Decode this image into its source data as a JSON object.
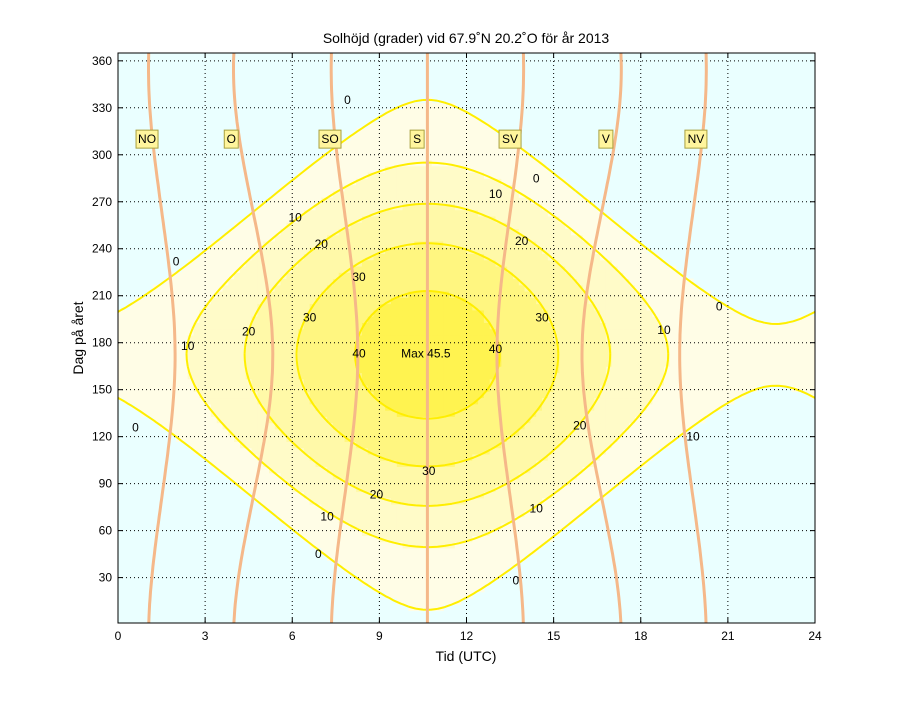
{
  "chart_data": {
    "type": "contour",
    "title": "Solhöjd (grader) vid 67.9˚N 20.2˚O för år 2013",
    "xlabel": "Tid (UTC)",
    "ylabel": "Dag på året",
    "xlim": [
      0,
      24
    ],
    "ylim": [
      1,
      365
    ],
    "x_ticks": [
      "0",
      "3",
      "6",
      "9",
      "12",
      "15",
      "18",
      "21",
      "24"
    ],
    "y_ticks": [
      "30",
      "60",
      "90",
      "120",
      "150",
      "180",
      "210",
      "240",
      "270",
      "300",
      "330",
      "360"
    ],
    "grid": true,
    "contour_levels": [
      0,
      10,
      20,
      30,
      40
    ],
    "contour_labels": [
      {
        "text": "0",
        "x": 7.9,
        "y": 335
      },
      {
        "text": "0",
        "x": 14.4,
        "y": 285
      },
      {
        "text": "0",
        "x": 2.0,
        "y": 232
      },
      {
        "text": "0",
        "x": 20.7,
        "y": 203
      },
      {
        "text": "0",
        "x": 0.6,
        "y": 126
      },
      {
        "text": "0",
        "x": 6.9,
        "y": 45
      },
      {
        "text": "0",
        "x": 13.7,
        "y": 28
      },
      {
        "text": "10",
        "x": 13.0,
        "y": 275
      },
      {
        "text": "10",
        "x": 6.1,
        "y": 260
      },
      {
        "text": "10",
        "x": 2.4,
        "y": 178
      },
      {
        "text": "10",
        "x": 18.8,
        "y": 188
      },
      {
        "text": "10",
        "x": 19.8,
        "y": 120
      },
      {
        "text": "10",
        "x": 7.2,
        "y": 69
      },
      {
        "text": "10",
        "x": 14.4,
        "y": 74
      },
      {
        "text": "20",
        "x": 13.9,
        "y": 245
      },
      {
        "text": "20",
        "x": 7.0,
        "y": 243
      },
      {
        "text": "20",
        "x": 4.5,
        "y": 187
      },
      {
        "text": "20",
        "x": 15.9,
        "y": 127
      },
      {
        "text": "20",
        "x": 8.9,
        "y": 83
      },
      {
        "text": "30",
        "x": 8.3,
        "y": 222
      },
      {
        "text": "30",
        "x": 6.6,
        "y": 196
      },
      {
        "text": "30",
        "x": 14.6,
        "y": 196
      },
      {
        "text": "30",
        "x": 10.7,
        "y": 98
      },
      {
        "text": "40",
        "x": 8.3,
        "y": 173
      },
      {
        "text": "40",
        "x": 13.0,
        "y": 176
      }
    ],
    "max_label": {
      "text": "Max 45.5",
      "x": 10.6,
      "y": 173
    },
    "azimuth_labels": [
      {
        "text": "NO",
        "x": 1.0,
        "y": 310
      },
      {
        "text": "O",
        "x": 3.9,
        "y": 310
      },
      {
        "text": "SO",
        "x": 7.3,
        "y": 310
      },
      {
        "text": "S",
        "x": 10.3,
        "y": 310
      },
      {
        "text": "SV",
        "x": 13.5,
        "y": 310
      },
      {
        "text": "V",
        "x": 16.8,
        "y": 310
      },
      {
        "text": "NV",
        "x": 19.9,
        "y": 310
      }
    ],
    "colors": {
      "night": "#eaffff",
      "level_0": "#fffde6",
      "level_10": "#fffbc8",
      "level_20": "#fff9a8",
      "level_30": "#fff680",
      "level_40": "#fff350",
      "contour_line": "#ffee00",
      "azimuth_line": "#f5b889",
      "label_box": "#fff59d",
      "label_border": "#a8a040",
      "grid": "#000000",
      "text": "#000000"
    }
  }
}
